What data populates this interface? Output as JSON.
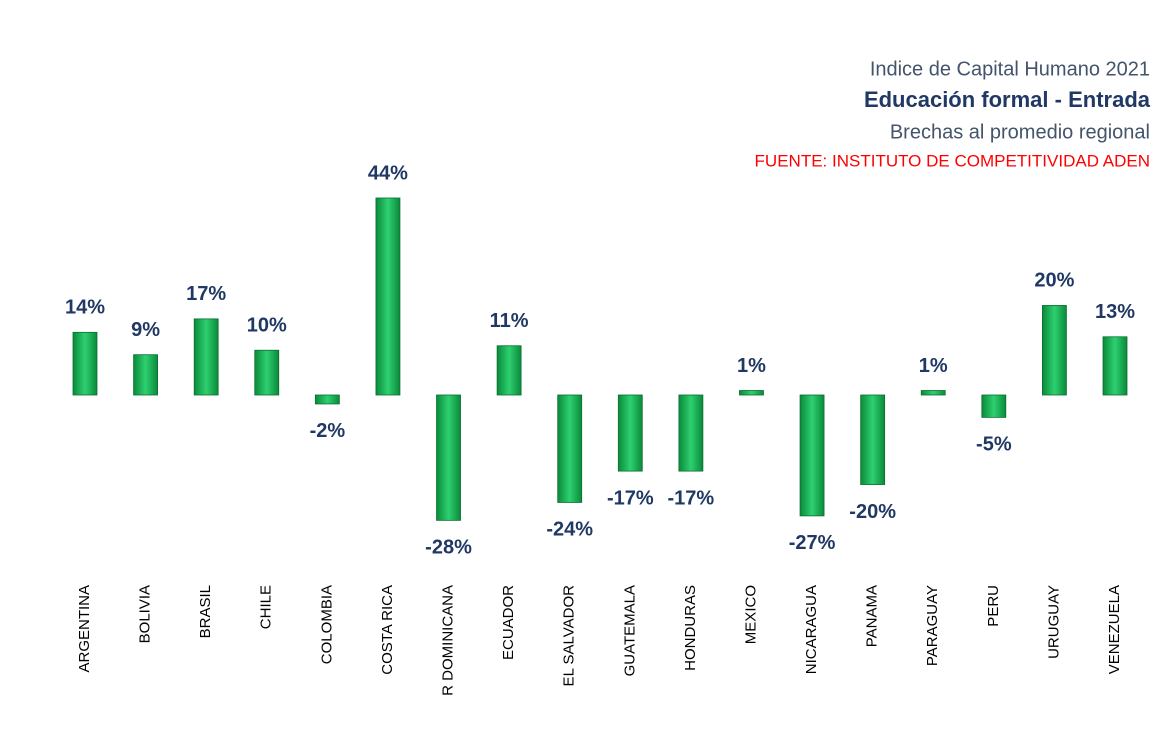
{
  "chart_data": {
    "type": "bar",
    "title": "Indice de Capital Humano 2021",
    "subtitle": "Educación formal - Entrada",
    "subtitle2": "Brechas al promedio regional",
    "source": "FUENTE: INSTITUTO DE COMPETITIVIDAD ADEN",
    "categories": [
      "ARGENTINA",
      "BOLIVIA",
      "BRASIL",
      "CHILE",
      "COLOMBIA",
      "COSTA RICA",
      "R DOMINICANA",
      "ECUADOR",
      "EL SALVADOR",
      "GUATEMALA",
      "HONDURAS",
      "MEXICO",
      "NICARAGUA",
      "PANAMA",
      "PARAGUAY",
      "PERU",
      "URUGUAY",
      "VENEZUELA"
    ],
    "values": [
      14,
      9,
      17,
      10,
      -2,
      44,
      -28,
      11,
      -24,
      -17,
      -17,
      1,
      -27,
      -20,
      1,
      -5,
      20,
      13
    ],
    "value_labels": [
      "14%",
      "9%",
      "17%",
      "10%",
      "-2%",
      "44%",
      "-28%",
      "11%",
      "-24%",
      "-17%",
      "-17%",
      "1%",
      "-27%",
      "-20%",
      "1%",
      "-5%",
      "20%",
      "13%"
    ],
    "color": "#00b050"
  }
}
